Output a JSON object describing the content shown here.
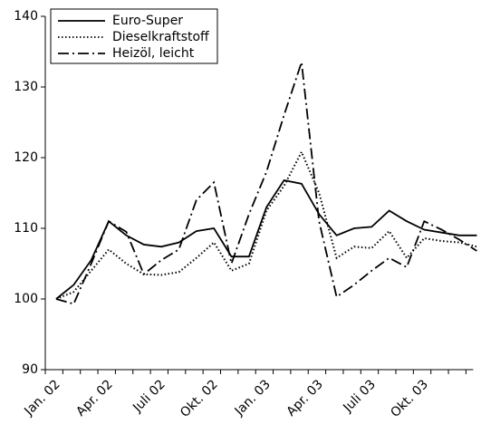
{
  "chart_data": {
    "type": "line",
    "categories": [
      "Jan. 02",
      null,
      null,
      "Apr. 02",
      null,
      null,
      "Juli 02",
      null,
      null,
      "Okt. 02",
      null,
      null,
      "Jan. 03",
      null,
      null,
      "Apr. 03",
      null,
      null,
      "Juli 03",
      null,
      null,
      "Okt. 03",
      null,
      null,
      null
    ],
    "series": [
      {
        "name": "Euro-Super",
        "color": "#000000",
        "line_style": "solid",
        "values": [
          100,
          102,
          105.5,
          111,
          109,
          107.7,
          107.4,
          108,
          109.6,
          110,
          106,
          106,
          113,
          116.8,
          116.3,
          112,
          109,
          110,
          110.2,
          112.5,
          111,
          109.8,
          109.4,
          109,
          109
        ]
      },
      {
        "name": "Dieselkraftstoff",
        "color": "#000000",
        "line_style": "dotted",
        "values": [
          100,
          101,
          104,
          107,
          105,
          103.5,
          103.4,
          103.8,
          105.8,
          108,
          104,
          105,
          112.5,
          116,
          120.8,
          115,
          105.8,
          107.4,
          107.2,
          109.6,
          105.8,
          108.6,
          108.2,
          108,
          107.4
        ]
      },
      {
        "name": "Heizöl, leicht",
        "color": "#000000",
        "line_style": "dashdot",
        "values": [
          100,
          99.3,
          105,
          111,
          109.5,
          103.5,
          105.5,
          107,
          114,
          116.5,
          105,
          112,
          118,
          126,
          133.5,
          111,
          100.3,
          102,
          104,
          105.8,
          104.5,
          111,
          109.8,
          108.4,
          106.8
        ]
      }
    ],
    "ylim": [
      90,
      140
    ],
    "yticks": [
      90,
      100,
      110,
      120,
      130,
      140
    ],
    "grid": false,
    "legend": "top-left"
  }
}
